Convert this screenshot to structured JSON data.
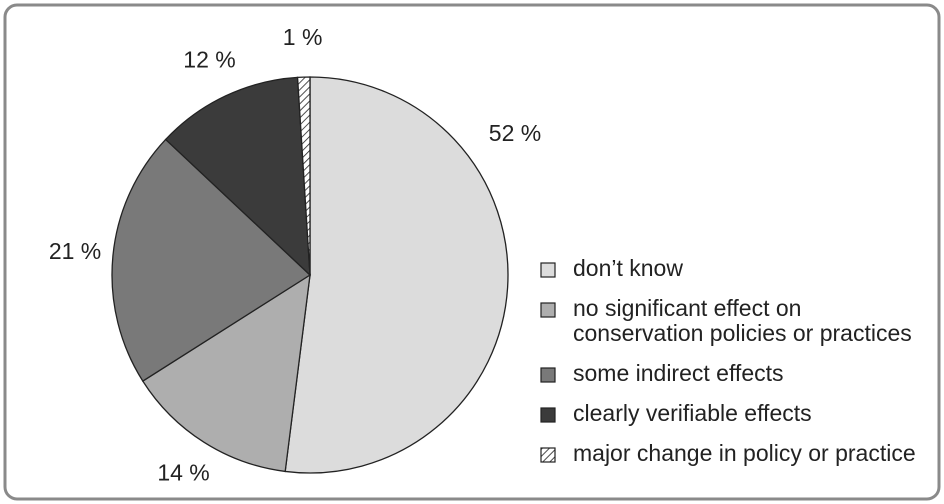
{
  "chart_data": {
    "type": "pie",
    "categories": [
      "don’t know",
      "no significant effect on conservation policies or practices",
      "some indirect effects",
      "clearly verifiable effects",
      "major change in policy or practice"
    ],
    "values": [
      52,
      14,
      21,
      12,
      1
    ],
    "value_labels": [
      "52 %",
      "14 %",
      "21 %",
      "12 %",
      "1 %"
    ],
    "colors": [
      "#dcdcdc",
      "#aeaeae",
      "#797979",
      "#3b3b3b",
      "#ffffff"
    ],
    "hatch": [
      false,
      false,
      false,
      false,
      true
    ],
    "legend": "right"
  }
}
